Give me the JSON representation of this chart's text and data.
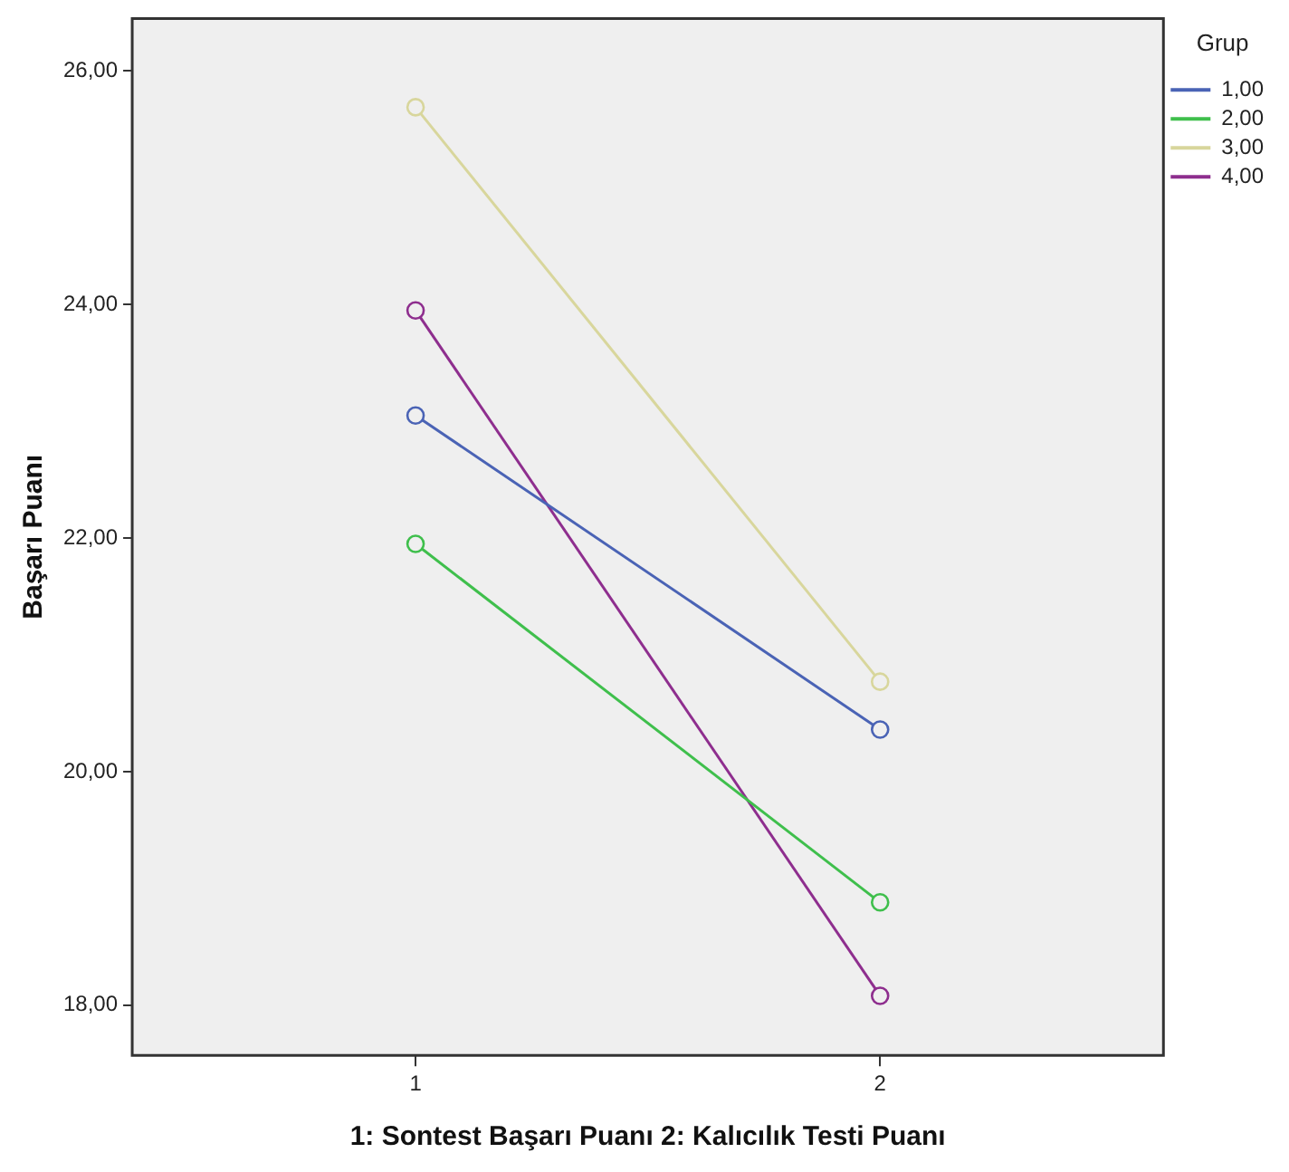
{
  "chart_data": {
    "type": "line",
    "xlabel": "1: Sontest Başarı Puanı 2: Kalıcılık Testi Puanı",
    "ylabel": "Başarı Puanı",
    "legend_title": "Grup",
    "legend": "right",
    "grid": false,
    "marker": "circle",
    "line_style": "solid",
    "x": [
      1,
      2
    ],
    "xlim": [
      0.39,
      2.61
    ],
    "xticks": [
      1,
      2
    ],
    "ylim": [
      17.57,
      26.45
    ],
    "yticks": [
      {
        "value": 18,
        "label": "18,00"
      },
      {
        "value": 20,
        "label": "20,00"
      },
      {
        "value": 22,
        "label": "22,00"
      },
      {
        "value": 24,
        "label": "24,00"
      },
      {
        "value": 26,
        "label": "26,00"
      }
    ],
    "series": [
      {
        "name": "1,00",
        "color": "#4a63b5",
        "values": [
          23.05,
          20.36
        ]
      },
      {
        "name": "2,00",
        "color": "#3fbf4c",
        "values": [
          21.95,
          18.88
        ]
      },
      {
        "name": "3,00",
        "color": "#d8d69c",
        "values": [
          25.69,
          20.77
        ]
      },
      {
        "name": "4,00",
        "color": "#8e2e8e",
        "values": [
          23.95,
          18.08
        ]
      }
    ]
  }
}
